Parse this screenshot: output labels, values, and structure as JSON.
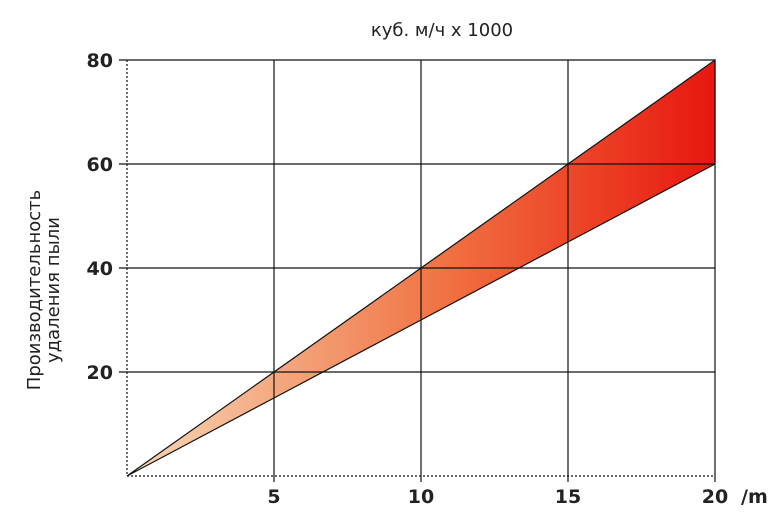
{
  "chart_data": {
    "type": "area",
    "title": "",
    "unit_label": "куб. м/ч х 1000",
    "ylabel_lines": [
      "Производительность",
      "удаления пыли"
    ],
    "xlabel": "",
    "x_unit": "/m",
    "xlim": [
      0,
      20
    ],
    "ylim": [
      0,
      80
    ],
    "x_ticks": [
      5,
      10,
      15,
      20
    ],
    "y_ticks": [
      20,
      40,
      60,
      80
    ],
    "grid": true,
    "band": {
      "x": [
        0,
        5,
        10,
        15,
        20
      ],
      "upper": [
        0,
        20,
        40,
        60,
        80
      ],
      "lower": [
        0,
        15,
        30,
        45,
        60
      ]
    },
    "colors": {
      "band_start": "#f7d9b8",
      "band_end": "#e8170f",
      "grid": "#111111"
    }
  }
}
